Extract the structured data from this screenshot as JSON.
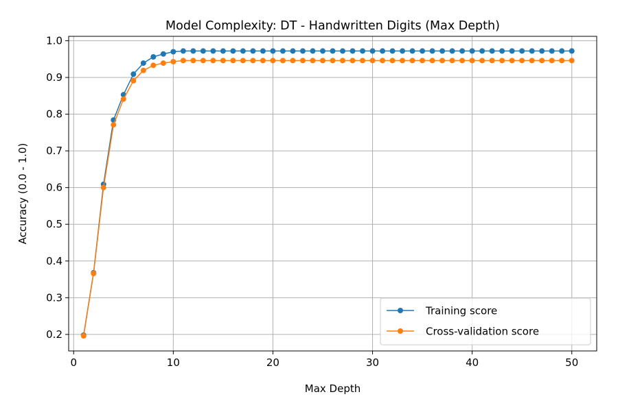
{
  "chart_data": {
    "type": "line",
    "title": "Model Complexity: DT - Handwritten Digits (Max Depth)",
    "xlabel": "Max Depth",
    "ylabel": "Accuracy (0.0 - 1.0)",
    "xlim": [
      -0.5,
      52.5
    ],
    "ylim": [
      0.155,
      1.012
    ],
    "x_ticks": [
      0,
      10,
      20,
      30,
      40,
      50
    ],
    "y_ticks": [
      0.2,
      0.3,
      0.4,
      0.5,
      0.6,
      0.7,
      0.8,
      0.9,
      1.0
    ],
    "grid": true,
    "legend_position": "lower-right",
    "x": [
      1,
      2,
      3,
      4,
      5,
      6,
      7,
      8,
      9,
      10,
      11,
      12,
      13,
      14,
      15,
      16,
      17,
      18,
      19,
      20,
      21,
      22,
      23,
      24,
      25,
      26,
      27,
      28,
      29,
      30,
      31,
      32,
      33,
      34,
      35,
      36,
      37,
      38,
      39,
      40,
      41,
      42,
      43,
      44,
      45,
      46,
      47,
      48,
      49,
      50
    ],
    "series": [
      {
        "name": "Training score",
        "color": "#1f77b4",
        "values": [
          0.198,
          0.368,
          0.609,
          0.784,
          0.853,
          0.909,
          0.939,
          0.956,
          0.964,
          0.97,
          0.972,
          0.972,
          0.972,
          0.972,
          0.972,
          0.972,
          0.972,
          0.972,
          0.972,
          0.972,
          0.972,
          0.972,
          0.972,
          0.972,
          0.972,
          0.972,
          0.972,
          0.972,
          0.972,
          0.972,
          0.972,
          0.972,
          0.972,
          0.972,
          0.972,
          0.972,
          0.972,
          0.972,
          0.972,
          0.972,
          0.972,
          0.972,
          0.972,
          0.972,
          0.972,
          0.972,
          0.972,
          0.972,
          0.972,
          0.972
        ]
      },
      {
        "name": "Cross-validation score",
        "color": "#ff7f0e",
        "values": [
          0.196,
          0.366,
          0.6,
          0.771,
          0.841,
          0.891,
          0.919,
          0.933,
          0.939,
          0.943,
          0.946,
          0.946,
          0.946,
          0.946,
          0.946,
          0.946,
          0.946,
          0.946,
          0.946,
          0.946,
          0.946,
          0.946,
          0.946,
          0.946,
          0.946,
          0.946,
          0.946,
          0.946,
          0.946,
          0.946,
          0.946,
          0.946,
          0.946,
          0.946,
          0.946,
          0.946,
          0.946,
          0.946,
          0.946,
          0.946,
          0.946,
          0.946,
          0.946,
          0.946,
          0.946,
          0.946,
          0.946,
          0.946,
          0.946,
          0.946
        ]
      }
    ]
  }
}
